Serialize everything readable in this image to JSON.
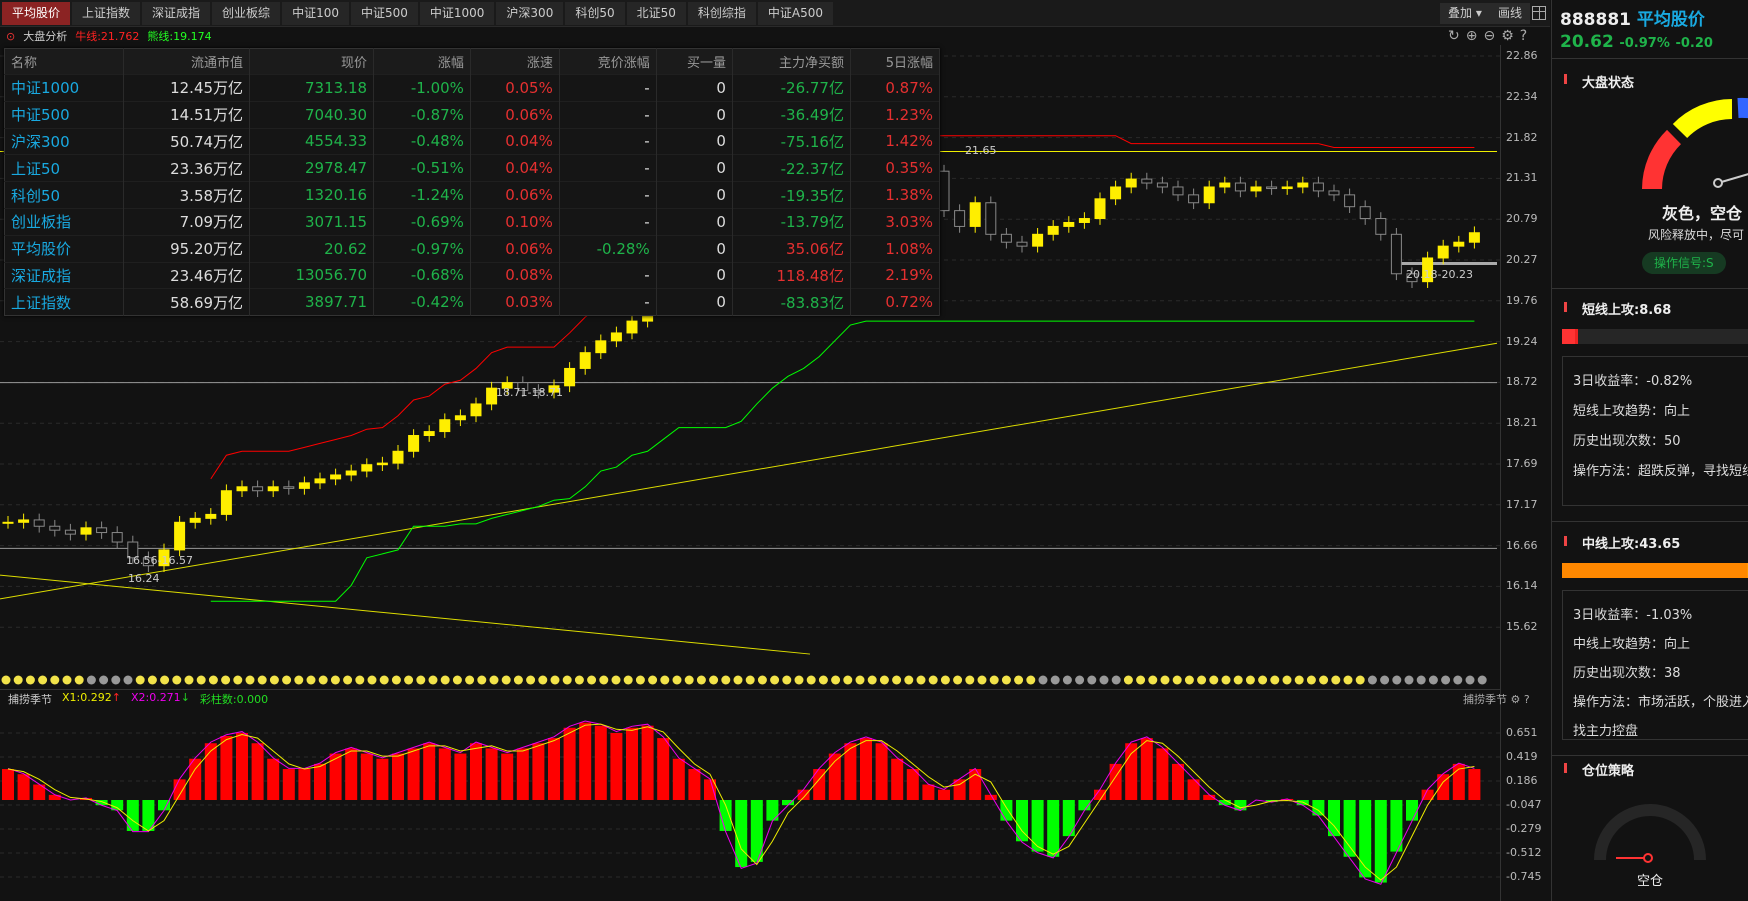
{
  "tabs": [
    "平均股价",
    "上证指数",
    "深证成指",
    "创业板综",
    "中证100",
    "中证500",
    "中证1000",
    "沪深300",
    "科创50",
    "北证50",
    "科创综指",
    "中证A500"
  ],
  "toolbar": {
    "overlay": "叠加",
    "draw": "画线",
    "grid_icon": "grid-icon"
  },
  "subbar": {
    "title": "大盘分析",
    "bull": "牛线:21.762",
    "bear": "熊线:19.174"
  },
  "table": {
    "headers": [
      "名称",
      "流通市值",
      "现价",
      "涨幅",
      "涨速",
      "竞价涨幅",
      "买一量",
      "主力净买额",
      "5日涨幅"
    ],
    "rows": [
      [
        "中证1000",
        "12.45万亿",
        "7313.18",
        "-1.00%",
        "0.05%",
        "-",
        "0",
        "-26.77亿",
        "0.87%"
      ],
      [
        "中证500",
        "14.51万亿",
        "7040.30",
        "-0.87%",
        "0.06%",
        "-",
        "0",
        "-36.49亿",
        "1.23%"
      ],
      [
        "沪深300",
        "50.74万亿",
        "4554.33",
        "-0.48%",
        "0.04%",
        "-",
        "0",
        "-75.16亿",
        "1.42%"
      ],
      [
        "上证50",
        "23.36万亿",
        "2978.47",
        "-0.51%",
        "0.04%",
        "-",
        "0",
        "-22.37亿",
        "0.35%"
      ],
      [
        "科创50",
        "3.58万亿",
        "1320.16",
        "-1.24%",
        "0.06%",
        "-",
        "0",
        "-19.35亿",
        "1.38%"
      ],
      [
        "创业板指",
        "7.09万亿",
        "3071.15",
        "-0.69%",
        "0.10%",
        "-",
        "0",
        "-13.79亿",
        "3.03%"
      ],
      [
        "平均股价",
        "95.20万亿",
        "20.62",
        "-0.97%",
        "0.06%",
        "-0.28%",
        "0",
        "35.06亿",
        "1.08%"
      ],
      [
        "深证成指",
        "23.46万亿",
        "13056.70",
        "-0.68%",
        "0.08%",
        "-",
        "0",
        "118.48亿",
        "2.19%"
      ],
      [
        "上证指数",
        "58.69万亿",
        "3897.71",
        "-0.42%",
        "0.03%",
        "-",
        "0",
        "-83.83亿",
        "0.72%"
      ]
    ]
  },
  "price_axis": [
    "22.86",
    "22.34",
    "21.82",
    "21.31",
    "20.79",
    "20.27",
    "19.76",
    "19.24",
    "18.72",
    "18.21",
    "17.69",
    "17.17",
    "16.66",
    "16.14",
    "15.62"
  ],
  "indicator_axis": [
    "0.651",
    "0.419",
    "0.186",
    "-0.047",
    "-0.279",
    "-0.512",
    "-0.745"
  ],
  "annotations": {
    "a1": "21.65",
    "a2": "16.56-16.57",
    "a3": "16.24",
    "a4": "18.71-18.71",
    "a5": "20.18-20.23"
  },
  "closes": [
    16.95,
    16.98,
    16.9,
    16.85,
    16.8,
    16.88,
    16.82,
    16.7,
    16.5,
    16.4,
    16.6,
    16.95,
    17.0,
    17.05,
    17.35,
    17.4,
    17.35,
    17.4,
    17.38,
    17.45,
    17.5,
    17.55,
    17.6,
    17.68,
    17.7,
    17.85,
    18.05,
    18.1,
    18.25,
    18.3,
    18.45,
    18.65,
    18.72,
    18.62,
    18.6,
    18.68,
    18.9,
    19.1,
    19.25,
    19.35,
    19.5,
    19.7,
    19.9,
    20.1,
    20.3,
    20.5,
    20.6,
    20.7,
    20.8,
    20.9,
    21.0,
    21.1,
    21.05,
    21.15,
    21.2,
    21.3,
    21.35,
    21.25,
    21.3,
    21.4,
    20.9,
    20.7,
    21.0,
    20.6,
    20.5,
    20.45,
    20.6,
    20.7,
    20.75,
    20.8,
    21.05,
    21.2,
    21.3,
    21.25,
    21.2,
    21.1,
    21.0,
    21.2,
    21.25,
    21.15,
    21.2,
    21.18,
    21.2,
    21.25,
    21.15,
    21.1,
    20.95,
    20.8,
    20.6,
    20.1,
    20.0,
    20.3,
    20.45,
    20.5,
    20.62
  ],
  "indicator_values": [
    0.3,
    0.25,
    0.15,
    0.05,
    0.0,
    0.02,
    -0.05,
    -0.1,
    -0.3,
    -0.3,
    -0.1,
    0.2,
    0.4,
    0.55,
    0.62,
    0.65,
    0.55,
    0.4,
    0.3,
    0.3,
    0.35,
    0.45,
    0.5,
    0.45,
    0.4,
    0.45,
    0.5,
    0.55,
    0.5,
    0.45,
    0.55,
    0.5,
    0.45,
    0.5,
    0.55,
    0.6,
    0.7,
    0.75,
    0.72,
    0.65,
    0.7,
    0.72,
    0.6,
    0.4,
    0.3,
    0.2,
    -0.3,
    -0.65,
    -0.6,
    -0.2,
    -0.05,
    0.1,
    0.3,
    0.45,
    0.55,
    0.6,
    0.55,
    0.4,
    0.3,
    0.15,
    0.1,
    0.2,
    0.3,
    0.05,
    -0.2,
    -0.4,
    -0.5,
    -0.55,
    -0.35,
    -0.1,
    0.1,
    0.35,
    0.55,
    0.6,
    0.5,
    0.35,
    0.2,
    0.05,
    -0.05,
    -0.1,
    0.0,
    -0.02,
    0.01,
    -0.05,
    -0.15,
    -0.35,
    -0.55,
    -0.75,
    -0.8,
    -0.5,
    -0.2,
    0.1,
    0.25,
    0.35,
    0.3
  ],
  "indicator": {
    "name": "捕捞季节",
    "x1": "X1:0.292",
    "x2": "X2:0.271",
    "bars": "彩柱数:0.000"
  },
  "colors": {
    "up": "#ffee00",
    "down": "#888888",
    "red": "#ff0000",
    "green": "#00ff00"
  },
  "right": {
    "code": "888881",
    "name": "平均股价",
    "price": "20.62",
    "pct": "-0.97%",
    "chg": "-0.20",
    "market_state": {
      "title": "大盘状态",
      "status": "灰色，空仓",
      "desc": "风险释放中，尽可",
      "signal": "操作信号:S"
    },
    "short": {
      "title": "短线上攻:8.68",
      "level": 8.68,
      "l1": "3日收益率：-0.82%",
      "l2": "短线上攻趋势：向上",
      "l3": "历史出现次数：50",
      "l4": "操作方法：超跌反弹，寻找短线"
    },
    "mid": {
      "title": "中线上攻:43.65",
      "level": 43.65,
      "l1": "3日收益率：-1.03%",
      "l2": "中线上攻趋势：向上",
      "l3": "历史出现次数：38",
      "l4": "操作方法：市场活跃，个股进入",
      "l5": "找主力控盘"
    },
    "position": {
      "title": "仓位策略",
      "value": "空仓"
    }
  }
}
